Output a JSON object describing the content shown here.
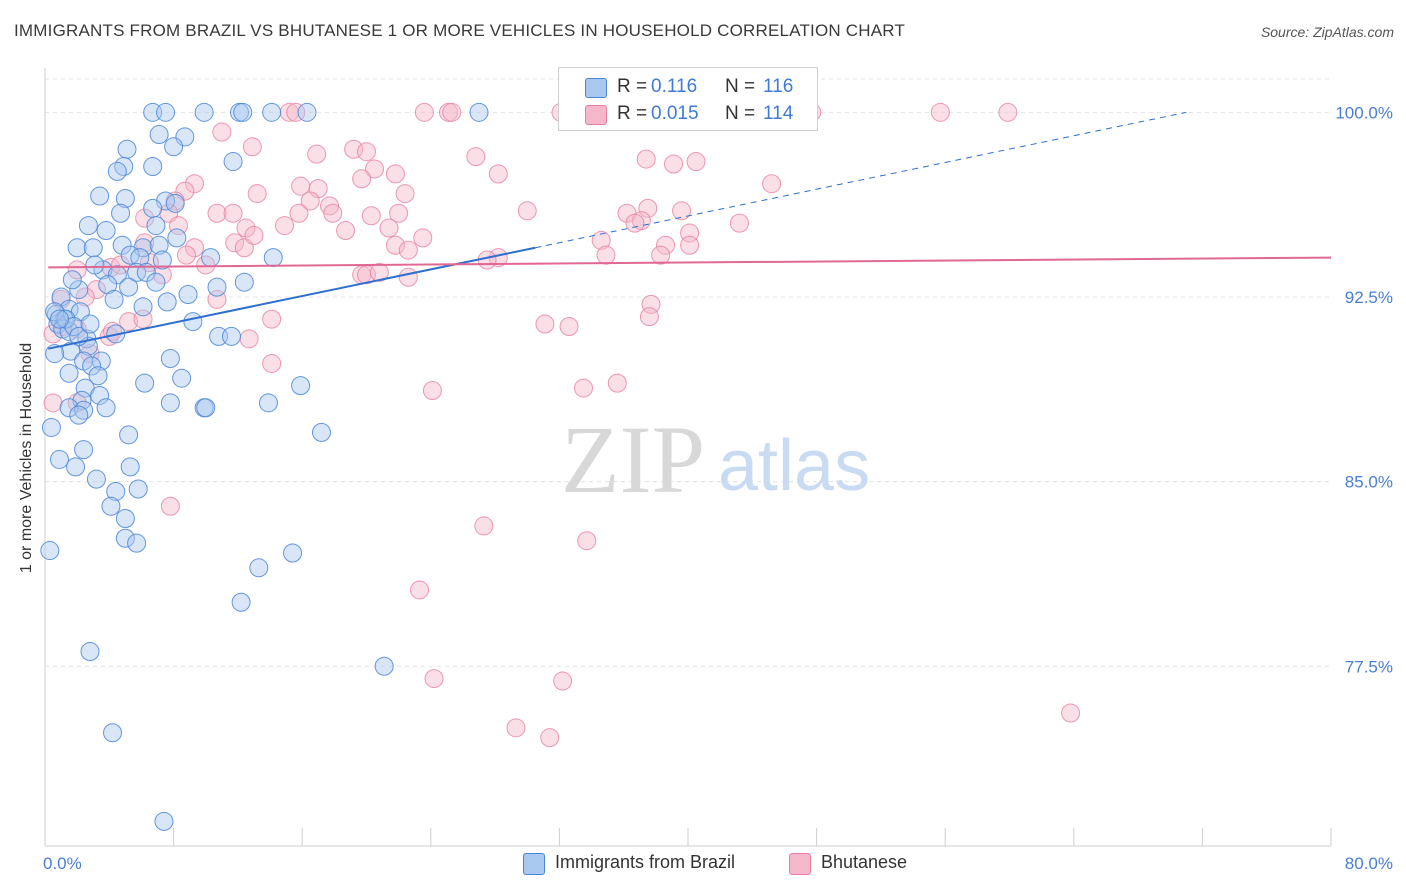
{
  "title": "IMMIGRANTS FROM BRAZIL VS BHUTANESE 1 OR MORE VEHICLES IN HOUSEHOLD CORRELATION CHART",
  "source": "Source: ZipAtlas.com",
  "watermark": {
    "zip": "ZIP",
    "atlas": "atlas"
  },
  "legend_top": {
    "rows": [
      {
        "r_label": "R =",
        "r_value": "0.116",
        "n_label": "N =",
        "n_value": "116"
      },
      {
        "r_label": "R =",
        "r_value": "0.015",
        "n_label": "N =",
        "n_value": "114"
      }
    ]
  },
  "legend_bottom": {
    "items": [
      "Immigrants from Brazil",
      "Bhutanese"
    ]
  },
  "colors": {
    "series1_fill": "#a9c8ef",
    "series1_stroke": "#4a86d8",
    "series1_line": "#2f6fcf",
    "series2_fill": "#f4b8ca",
    "series2_stroke": "#e97fa1",
    "series2_line": "#e06892",
    "tick_label": "#4a7fd0",
    "grid": "#e3e3e3"
  },
  "chart_data": {
    "type": "scatter",
    "xlabel": "",
    "ylabel": "1 or more Vehicles in Household",
    "xlim": [
      0,
      80
    ],
    "ylim": [
      70.2,
      101.8
    ],
    "x_tick_labels": {
      "0": "0.0%",
      "80": "80.0%"
    },
    "y_ticks": [
      77.5,
      85.0,
      92.5,
      100.0
    ],
    "y_tick_labels": [
      "77.5%",
      "85.0%",
      "92.5%",
      "100.0%"
    ],
    "grid": true,
    "legend_position": "top-center",
    "series": [
      {
        "name": "Immigrants from Brazil",
        "r": 0.116,
        "n": 116,
        "trend": {
          "x": [
            0.2,
            30.5
          ],
          "y": [
            90.4,
            94.5
          ],
          "extended_to": [
            71.0,
            100.0
          ]
        },
        "points": [
          [
            6.7,
            100
          ],
          [
            7.5,
            100
          ],
          [
            9.9,
            100
          ],
          [
            12.1,
            100
          ],
          [
            12.3,
            100
          ],
          [
            14.1,
            100
          ],
          [
            16.3,
            100
          ],
          [
            27.0,
            100
          ],
          [
            7.1,
            99.1
          ],
          [
            8.7,
            99.0
          ],
          [
            8.0,
            98.6
          ],
          [
            5.1,
            98.5
          ],
          [
            11.7,
            98.0
          ],
          [
            4.9,
            97.8
          ],
          [
            4.5,
            97.6
          ],
          [
            6.7,
            97.8
          ],
          [
            3.4,
            96.6
          ],
          [
            5.0,
            96.5
          ],
          [
            7.5,
            96.4
          ],
          [
            8.1,
            96.3
          ],
          [
            6.7,
            96.1
          ],
          [
            4.7,
            95.9
          ],
          [
            2.7,
            95.4
          ],
          [
            3.8,
            95.2
          ],
          [
            6.9,
            95.4
          ],
          [
            8.2,
            94.9
          ],
          [
            4.8,
            94.6
          ],
          [
            2.0,
            94.5
          ],
          [
            3.0,
            94.5
          ],
          [
            6.1,
            94.5
          ],
          [
            7.1,
            94.6
          ],
          [
            10.3,
            94.1
          ],
          [
            14.2,
            94.1
          ],
          [
            5.3,
            94.2
          ],
          [
            5.9,
            94.1
          ],
          [
            3.6,
            93.6
          ],
          [
            4.5,
            93.4
          ],
          [
            5.7,
            93.5
          ],
          [
            6.3,
            93.5
          ],
          [
            12.4,
            93.1
          ],
          [
            2.1,
            92.8
          ],
          [
            5.2,
            92.9
          ],
          [
            6.9,
            93.1
          ],
          [
            10.7,
            92.9
          ],
          [
            7.6,
            92.3
          ],
          [
            1.0,
            92.5
          ],
          [
            1.5,
            92.0
          ],
          [
            0.7,
            91.8
          ],
          [
            1.2,
            91.6
          ],
          [
            2.2,
            91.9
          ],
          [
            0.8,
            91.4
          ],
          [
            1.1,
            91.2
          ],
          [
            1.5,
            91.1
          ],
          [
            6.1,
            92.1
          ],
          [
            9.2,
            91.5
          ],
          [
            10.8,
            90.9
          ],
          [
            11.6,
            90.9
          ],
          [
            4.4,
            91.0
          ],
          [
            2.6,
            90.8
          ],
          [
            2.7,
            90.5
          ],
          [
            1.6,
            90.3
          ],
          [
            0.6,
            90.2
          ],
          [
            2.4,
            89.9
          ],
          [
            3.5,
            89.9
          ],
          [
            2.9,
            89.7
          ],
          [
            7.8,
            90.0
          ],
          [
            1.5,
            89.4
          ],
          [
            3.3,
            89.3
          ],
          [
            8.5,
            89.2
          ],
          [
            2.5,
            88.8
          ],
          [
            6.2,
            89.0
          ],
          [
            15.9,
            88.9
          ],
          [
            2.3,
            88.3
          ],
          [
            3.4,
            88.5
          ],
          [
            1.5,
            88.0
          ],
          [
            2.4,
            87.9
          ],
          [
            3.8,
            88.0
          ],
          [
            7.8,
            88.2
          ],
          [
            9.9,
            88.0
          ],
          [
            10.0,
            88.0
          ],
          [
            13.9,
            88.2
          ],
          [
            2.1,
            87.7
          ],
          [
            0.4,
            87.2
          ],
          [
            5.2,
            86.9
          ],
          [
            17.2,
            87.0
          ],
          [
            2.4,
            86.3
          ],
          [
            0.9,
            85.9
          ],
          [
            1.9,
            85.6
          ],
          [
            5.3,
            85.6
          ],
          [
            3.2,
            85.1
          ],
          [
            4.4,
            84.6
          ],
          [
            5.8,
            84.7
          ],
          [
            4.1,
            84.0
          ],
          [
            5.0,
            83.5
          ],
          [
            5.0,
            82.7
          ],
          [
            5.7,
            82.5
          ],
          [
            0.3,
            82.2
          ],
          [
            15.4,
            82.1
          ],
          [
            13.3,
            81.5
          ],
          [
            12.2,
            80.1
          ],
          [
            2.8,
            78.1
          ],
          [
            21.1,
            77.5
          ],
          [
            4.2,
            74.8
          ],
          [
            7.4,
            71.2
          ],
          [
            0.6,
            91.9
          ],
          [
            1.3,
            91.6
          ],
          [
            1.8,
            91.3
          ],
          [
            2.1,
            90.9
          ],
          [
            0.9,
            91.6
          ],
          [
            3.9,
            93.0
          ],
          [
            4.3,
            92.4
          ],
          [
            1.7,
            93.2
          ],
          [
            7.3,
            94.0
          ],
          [
            3.1,
            93.8
          ],
          [
            8.9,
            92.6
          ],
          [
            2.8,
            91.4
          ]
        ]
      },
      {
        "name": "Bhutanese",
        "r": 0.015,
        "n": 114,
        "trend": {
          "x": [
            0.2,
            80.0
          ],
          "y": [
            93.7,
            94.1
          ]
        },
        "points": [
          [
            15.2,
            100
          ],
          [
            15.6,
            100
          ],
          [
            23.6,
            100
          ],
          [
            25.1,
            100
          ],
          [
            25.3,
            100
          ],
          [
            32.1,
            100
          ],
          [
            32.5,
            100
          ],
          [
            45.6,
            100
          ],
          [
            47.7,
            100
          ],
          [
            55.7,
            100
          ],
          [
            59.9,
            100
          ],
          [
            11.0,
            99.2
          ],
          [
            12.9,
            98.6
          ],
          [
            19.2,
            98.5
          ],
          [
            16.9,
            98.3
          ],
          [
            20.0,
            98.4
          ],
          [
            26.8,
            98.2
          ],
          [
            37.4,
            98.1
          ],
          [
            39.1,
            97.9
          ],
          [
            20.5,
            97.7
          ],
          [
            21.8,
            97.5
          ],
          [
            19.7,
            97.3
          ],
          [
            28.2,
            97.5
          ],
          [
            40.5,
            98.0
          ],
          [
            9.3,
            97.1
          ],
          [
            8.7,
            96.8
          ],
          [
            13.2,
            96.7
          ],
          [
            15.9,
            97.0
          ],
          [
            17.0,
            96.9
          ],
          [
            22.4,
            96.7
          ],
          [
            45.2,
            97.1
          ],
          [
            8.1,
            96.4
          ],
          [
            16.5,
            96.4
          ],
          [
            17.7,
            96.2
          ],
          [
            30.0,
            96.0
          ],
          [
            37.5,
            96.1
          ],
          [
            39.6,
            96.0
          ],
          [
            7.7,
            95.9
          ],
          [
            10.7,
            95.9
          ],
          [
            11.7,
            95.9
          ],
          [
            15.8,
            95.9
          ],
          [
            17.9,
            95.9
          ],
          [
            20.3,
            95.8
          ],
          [
            22.0,
            95.9
          ],
          [
            36.2,
            95.9
          ],
          [
            37.1,
            95.6
          ],
          [
            6.2,
            95.7
          ],
          [
            12.5,
            95.3
          ],
          [
            14.9,
            95.4
          ],
          [
            21.4,
            95.3
          ],
          [
            43.2,
            95.5
          ],
          [
            36.7,
            95.5
          ],
          [
            40.1,
            95.1
          ],
          [
            6.2,
            94.7
          ],
          [
            9.3,
            94.5
          ],
          [
            11.8,
            94.7
          ],
          [
            12.4,
            94.5
          ],
          [
            21.8,
            94.6
          ],
          [
            22.6,
            94.4
          ],
          [
            34.6,
            94.8
          ],
          [
            38.6,
            94.6
          ],
          [
            40.1,
            94.6
          ],
          [
            8.8,
            94.2
          ],
          [
            6.5,
            93.9
          ],
          [
            10.0,
            93.8
          ],
          [
            2.0,
            93.6
          ],
          [
            4.1,
            93.7
          ],
          [
            19.7,
            93.4
          ],
          [
            20.0,
            93.4
          ],
          [
            20.8,
            93.5
          ],
          [
            22.6,
            93.3
          ],
          [
            28.2,
            94.1
          ],
          [
            34.9,
            94.2
          ],
          [
            38.3,
            94.2
          ],
          [
            7.3,
            93.4
          ],
          [
            3.2,
            92.8
          ],
          [
            10.7,
            92.4
          ],
          [
            1.0,
            92.4
          ],
          [
            2.5,
            92.5
          ],
          [
            14.1,
            91.6
          ],
          [
            5.2,
            91.5
          ],
          [
            6.1,
            91.6
          ],
          [
            31.1,
            91.4
          ],
          [
            32.6,
            91.3
          ],
          [
            37.7,
            92.2
          ],
          [
            37.6,
            91.7
          ],
          [
            2.0,
            91.2
          ],
          [
            4.0,
            90.9
          ],
          [
            1.1,
            91.3
          ],
          [
            0.5,
            91.0
          ],
          [
            4.2,
            91.1
          ],
          [
            12.7,
            90.8
          ],
          [
            2.8,
            90.2
          ],
          [
            14.1,
            89.8
          ],
          [
            24.1,
            88.7
          ],
          [
            33.5,
            88.8
          ],
          [
            35.6,
            89.0
          ],
          [
            0.5,
            88.2
          ],
          [
            2.0,
            88.2
          ],
          [
            7.8,
            84.0
          ],
          [
            27.3,
            83.2
          ],
          [
            33.7,
            82.6
          ],
          [
            23.3,
            80.6
          ],
          [
            24.2,
            77.0
          ],
          [
            32.2,
            76.9
          ],
          [
            29.3,
            75.0
          ],
          [
            31.4,
            74.6
          ],
          [
            63.8,
            75.6
          ],
          [
            4.7,
            93.8
          ],
          [
            8.3,
            95.4
          ],
          [
            13.0,
            95.0
          ],
          [
            23.5,
            94.9
          ],
          [
            18.7,
            95.2
          ],
          [
            27.5,
            94.0
          ]
        ]
      }
    ]
  }
}
